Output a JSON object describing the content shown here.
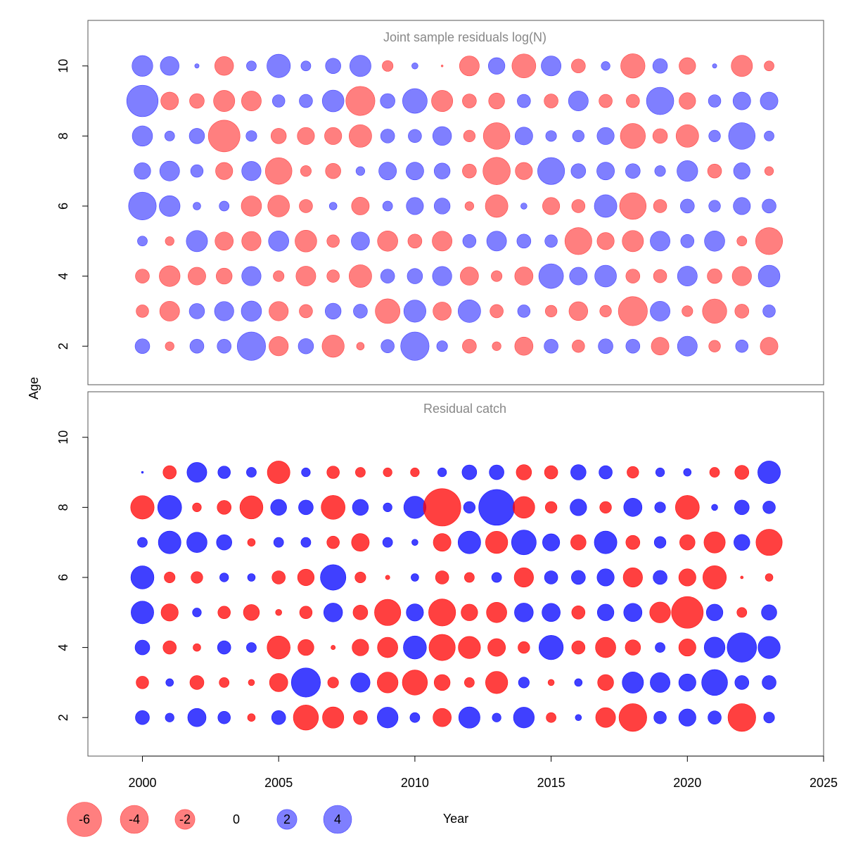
{
  "chart_data": {
    "type": "bubble",
    "xlabel": "Year",
    "ylabel": "Age",
    "xlim": [
      1998,
      2025
    ],
    "ylim": [
      0.9,
      11.3
    ],
    "x_ticks": [
      2000,
      2005,
      2010,
      2015,
      2020,
      2025
    ],
    "y_ticks": [
      2,
      4,
      6,
      8,
      10
    ],
    "years": [
      2000,
      2001,
      2002,
      2003,
      2004,
      2005,
      2006,
      2007,
      2008,
      2009,
      2010,
      2011,
      2012,
      2013,
      2014,
      2015,
      2016,
      2017,
      2018,
      2019,
      2020,
      2021,
      2022,
      2023
    ],
    "colors": {
      "negative": "#ff0000",
      "positive": "#0000ff",
      "panel_border": "#555555",
      "title": "#888888"
    },
    "legend": {
      "values": [
        -6,
        -4,
        -2,
        0,
        2,
        4
      ],
      "labels": [
        "-6",
        "-4",
        "-2",
        "0",
        "2",
        "4"
      ]
    },
    "panels": [
      {
        "title": "Joint sample residuals log(N)",
        "opacity": 0.5,
        "ages": [
          2,
          3,
          4,
          5,
          6,
          7,
          8,
          9,
          10
        ],
        "residuals": [
          [
            1.1,
            -0.4,
            1.0,
            1.0,
            4.1,
            -1.9,
            1.2,
            -2.5,
            -0.3,
            0.9,
            4.1,
            0.6,
            -1.0,
            -0.4,
            -1.7,
            1.0,
            -0.8,
            1.1,
            1.0,
            -1.6,
            2.0,
            -0.7,
            0.8,
            -1.6
          ],
          [
            -0.8,
            -2.0,
            1.2,
            1.9,
            2.1,
            -1.9,
            -0.9,
            1.3,
            1.0,
            -3.1,
            2.5,
            -1.7,
            2.6,
            -0.9,
            0.8,
            -0.7,
            -1.8,
            -0.7,
            -4.3,
            2.0,
            -0.6,
            -3.0,
            -1.0,
            0.8
          ],
          [
            -1.0,
            -2.2,
            -1.6,
            -1.3,
            1.9,
            -0.6,
            -2.0,
            -0.8,
            -2.6,
            1.0,
            1.2,
            1.9,
            -1.7,
            -0.6,
            -1.7,
            3.1,
            1.6,
            2.4,
            -1.0,
            -0.9,
            2.0,
            -1.1,
            -1.9,
            2.4
          ],
          [
            0.5,
            -0.4,
            2.3,
            -1.7,
            -1.9,
            2.1,
            -2.4,
            -0.8,
            1.7,
            -2.1,
            -1.0,
            -2.0,
            0.9,
            2.0,
            1.0,
            0.8,
            -3.7,
            -1.5,
            -2.3,
            2.0,
            0.9,
            2.1,
            -0.5,
            -3.7
          ],
          [
            3.9,
            2.2,
            0.3,
            0.5,
            -2.1,
            -2.4,
            -0.9,
            0.3,
            -1.6,
            0.5,
            1.5,
            1.3,
            -0.4,
            -2.6,
            0.2,
            -1.5,
            -0.9,
            2.6,
            -3.6,
            -0.9,
            1.0,
            0.7,
            1.5,
            1.0
          ],
          [
            1.4,
            2.0,
            0.8,
            -1.5,
            1.9,
            -3.6,
            -0.6,
            -1.2,
            0.4,
            1.6,
            1.6,
            1.3,
            -1.0,
            -3.8,
            -1.5,
            3.7,
            1.1,
            1.6,
            1.1,
            0.6,
            2.2,
            -1.0,
            1.4,
            -0.4
          ],
          [
            2.1,
            0.5,
            1.2,
            -5.1,
            0.6,
            -1.2,
            -1.5,
            -1.5,
            -2.6,
            1.0,
            0.9,
            1.8,
            -0.7,
            -3.6,
            1.6,
            0.6,
            0.7,
            1.5,
            -3.2,
            -1.1,
            -2.6,
            0.7,
            3.6,
            0.5
          ],
          [
            5.0,
            -1.6,
            -1.1,
            -2.3,
            -2.0,
            0.8,
            0.9,
            2.4,
            -4.3,
            1.1,
            3.1,
            -2.3,
            -1.0,
            -1.3,
            0.9,
            -1.0,
            2.0,
            -0.9,
            -0.9,
            3.8,
            -1.4,
            0.8,
            1.6,
            1.6
          ],
          [
            2.2,
            1.8,
            0.1,
            -1.8,
            0.5,
            2.8,
            0.5,
            1.2,
            2.3,
            -0.6,
            0.2,
            -0.02,
            -2.0,
            1.4,
            -2.9,
            2.0,
            -1.0,
            0.4,
            -3.0,
            1.1,
            -1.4,
            0.1,
            -2.3,
            -0.5
          ]
        ]
      },
      {
        "title": "Residual catch",
        "opacity": 0.75,
        "ages": [
          2,
          3,
          4,
          5,
          6,
          7,
          8,
          9
        ],
        "residuals": [
          [
            1.0,
            0.4,
            1.7,
            0.8,
            -0.3,
            1.0,
            -3.2,
            -2.3,
            -1.0,
            2.2,
            0.5,
            -1.7,
            2.3,
            0.4,
            2.2,
            -0.5,
            0.2,
            -2.0,
            -3.9,
            0.8,
            1.5,
            0.9,
            -3.9,
            0.6
          ],
          [
            -0.8,
            0.3,
            -1.0,
            -0.5,
            -0.2,
            -1.7,
            4.3,
            -0.6,
            1.9,
            -2.2,
            -3.2,
            -1.3,
            -0.5,
            -2.5,
            0.6,
            -0.2,
            0.3,
            -1.3,
            2.3,
            2.0,
            1.5,
            3.4,
            1.0,
            1.0
          ],
          [
            1.1,
            -0.9,
            -0.3,
            0.9,
            0.5,
            -2.7,
            -1.3,
            -0.1,
            -1.4,
            -2.1,
            2.7,
            -3.5,
            -2.5,
            -1.6,
            -0.7,
            3.0,
            -0.9,
            -2.1,
            -1.2,
            0.5,
            -1.5,
            2.2,
            4.4,
            2.5
          ],
          [
            2.6,
            -1.5,
            0.4,
            -0.8,
            -1.3,
            -0.2,
            -0.8,
            1.8,
            -1.1,
            -3.5,
            1.5,
            -3.7,
            -1.4,
            -2.1,
            1.8,
            1.7,
            -0.9,
            1.4,
            1.7,
            -2.2,
            -5.1,
            1.4,
            -0.5,
            1.2
          ],
          [
            2.7,
            -0.6,
            -0.7,
            0.4,
            0.3,
            -0.9,
            -1.4,
            3.3,
            -0.6,
            -0.1,
            0.3,
            -0.9,
            -0.5,
            0.5,
            -1.9,
            0.9,
            1.0,
            1.5,
            -1.9,
            1.0,
            -1.5,
            -2.8,
            -0.04,
            -0.3
          ],
          [
            0.5,
            2.6,
            2.1,
            1.2,
            -0.3,
            0.5,
            0.5,
            -0.8,
            -1.6,
            0.5,
            0.2,
            -1.6,
            2.6,
            -2.5,
            3.1,
            1.5,
            -1.2,
            2.6,
            -1.0,
            0.7,
            -1.2,
            -2.3,
            1.3,
            -3.5
          ],
          [
            -2.8,
            2.9,
            -0.4,
            -1.0,
            -2.7,
            1.3,
            1.1,
            -2.9,
            1.3,
            0.4,
            2.5,
            -7.1,
            0.7,
            6.5,
            -2.4,
            -0.7,
            1.4,
            -0.7,
            1.7,
            0.6,
            -2.9,
            0.2,
            1.1,
            0.8
          ],
          [
            0.02,
            -0.9,
            2.0,
            0.8,
            0.5,
            -2.6,
            0.4,
            -0.8,
            -0.5,
            -0.4,
            -0.4,
            0.4,
            1.1,
            1.1,
            -1.2,
            -0.9,
            1.2,
            0.9,
            -0.7,
            0.4,
            0.3,
            -0.5,
            -1.0,
            2.6
          ]
        ]
      }
    ]
  }
}
